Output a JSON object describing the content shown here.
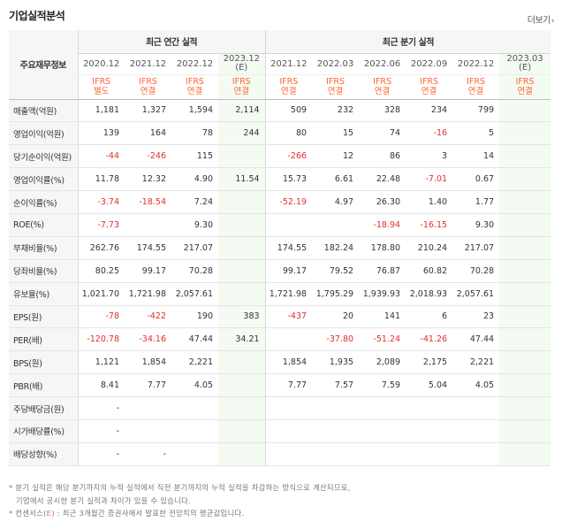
{
  "header": {
    "title": "기업실적분석",
    "more": "더보기"
  },
  "table": {
    "label_header": "주요재무정보",
    "group_annual": "최근 연간 실적",
    "group_quarter": "최근 분기 실적",
    "annual_periods": [
      {
        "label": "2020.12",
        "std": "IFRS",
        "basis": "별도",
        "estimate": false
      },
      {
        "label": "2021.12",
        "std": "IFRS",
        "basis": "연결",
        "estimate": false
      },
      {
        "label": "2022.12",
        "std": "IFRS",
        "basis": "연결",
        "estimate": false
      },
      {
        "label": "2023.12",
        "sub": "(E)",
        "std": "IFRS",
        "basis": "연결",
        "estimate": true
      }
    ],
    "quarter_periods": [
      {
        "label": "2021.12",
        "std": "IFRS",
        "basis": "연결",
        "estimate": false
      },
      {
        "label": "2022.03",
        "std": "IFRS",
        "basis": "연결",
        "estimate": false
      },
      {
        "label": "2022.06",
        "std": "IFRS",
        "basis": "연결",
        "estimate": false
      },
      {
        "label": "2022.09",
        "std": "IFRS",
        "basis": "연결",
        "estimate": false
      },
      {
        "label": "2022.12",
        "std": "IFRS",
        "basis": "연결",
        "estimate": false
      },
      {
        "label": "2023.03",
        "sub": "(E)",
        "std": "IFRS",
        "basis": "연결",
        "estimate": true
      }
    ],
    "rows": [
      {
        "label": "매출액(억원)",
        "values": [
          "1,181",
          "1,327",
          "1,594",
          "2,114",
          "509",
          "232",
          "328",
          "234",
          "799",
          ""
        ]
      },
      {
        "label": "영업이익(억원)",
        "values": [
          "139",
          "164",
          "78",
          "244",
          "80",
          "15",
          "74",
          "-16",
          "5",
          ""
        ]
      },
      {
        "label": "당기순이익(억원)",
        "values": [
          "-44",
          "-246",
          "115",
          "",
          "-266",
          "12",
          "86",
          "3",
          "14",
          ""
        ]
      },
      {
        "label": "영업이익률(%)",
        "values": [
          "11.78",
          "12.32",
          "4.90",
          "11.54",
          "15.73",
          "6.61",
          "22.48",
          "-7.01",
          "0.67",
          ""
        ],
        "group_start": true
      },
      {
        "label": "순이익률(%)",
        "values": [
          "-3.74",
          "-18.54",
          "7.24",
          "",
          "-52.19",
          "4.97",
          "26.30",
          "1.40",
          "1.77",
          ""
        ]
      },
      {
        "label": "ROE(%)",
        "values": [
          "-7.73",
          "",
          "9.30",
          "",
          "",
          "",
          "-18.94",
          "-16.15",
          "9.30",
          ""
        ]
      },
      {
        "label": "부채비율(%)",
        "values": [
          "262.76",
          "174.55",
          "217.07",
          "",
          "174.55",
          "182.24",
          "178.80",
          "210.24",
          "217.07",
          ""
        ],
        "group_start": true
      },
      {
        "label": "당좌비율(%)",
        "values": [
          "80.25",
          "99.17",
          "70.28",
          "",
          "99.17",
          "79.52",
          "76.87",
          "60.82",
          "70.28",
          ""
        ]
      },
      {
        "label": "유보율(%)",
        "values": [
          "1,021.70",
          "1,721.98",
          "2,057.61",
          "",
          "1,721.98",
          "1,795.29",
          "1,939.93",
          "2,018.93",
          "2,057.61",
          ""
        ]
      },
      {
        "label": "EPS(원)",
        "values": [
          "-78",
          "-422",
          "190",
          "383",
          "-437",
          "20",
          "141",
          "6",
          "23",
          ""
        ],
        "group_start": true
      },
      {
        "label": "PER(배)",
        "values": [
          "-120.78",
          "-34.16",
          "47.44",
          "34.21",
          "",
          "-37.80",
          "-51.24",
          "-41.26",
          "47.44",
          ""
        ]
      },
      {
        "label": "BPS(원)",
        "values": [
          "1,121",
          "1,854",
          "2,221",
          "",
          "1,854",
          "1,935",
          "2,089",
          "2,175",
          "2,221",
          ""
        ]
      },
      {
        "label": "PBR(배)",
        "values": [
          "8.41",
          "7.77",
          "4.05",
          "",
          "7.77",
          "7.57",
          "7.59",
          "5.04",
          "4.05",
          ""
        ]
      },
      {
        "label": "주당배당금(원)",
        "values": [
          "-",
          "",
          "",
          "",
          "",
          "",
          "",
          "",
          "",
          ""
        ],
        "group_start": true
      },
      {
        "label": "시가배당률(%)",
        "values": [
          "-",
          "",
          "",
          "",
          "",
          "",
          "",
          "",
          "",
          ""
        ]
      },
      {
        "label": "배당성향(%)",
        "values": [
          "-",
          "-",
          "",
          "",
          "",
          "",
          "",
          "",
          "",
          ""
        ]
      }
    ]
  },
  "notes": {
    "line1": "* 분기 실적은 해당 분기까지의 누적 실적에서 직전 분기까지의 누적 실적을 차감하는 방식으로 계산되므로,",
    "line2": "기업에서 공시한 분기 실적과 차이가 있을 수 있습니다.",
    "line3_prefix": "* 컨센서스(",
    "line3_e": "E",
    "line3_suffix": ") : 최근 3개월간 증권사에서 발표한 전망치의 평균값입니다."
  },
  "colors": {
    "negative": "#e0312b",
    "ifrs": "#ff6633",
    "estimate_bg": "#f4fbf2"
  }
}
